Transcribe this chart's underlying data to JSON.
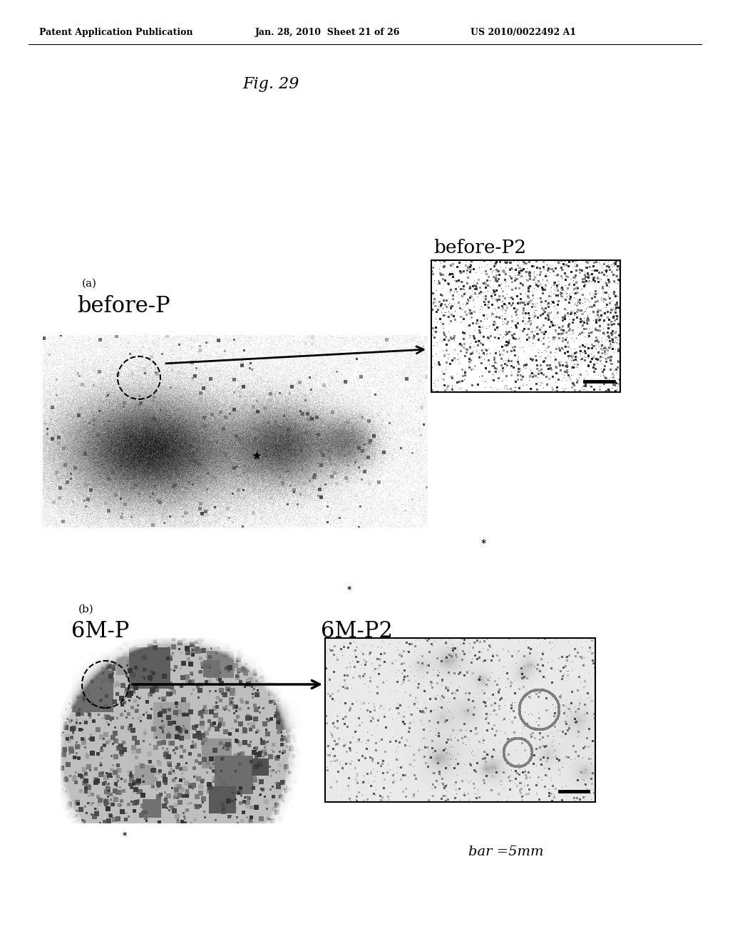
{
  "bg_color": "#ffffff",
  "header_left": "Patent Application Publication",
  "header_middle": "Jan. 28, 2010  Sheet 21 of 26",
  "header_right": "US 2010/0022492 A1",
  "fig_label": "Fig. 29",
  "panel_a_label": "(a)",
  "panel_a_title": "before-P",
  "panel_a_inset_title": "before-P2",
  "panel_b_label": "(b)",
  "panel_b_title": "6M-P",
  "panel_b_inset_title": "6M-P2",
  "scale_bar_text": "bar =5mm",
  "header_fontsize": 9,
  "fig_fontsize": 16,
  "label_fontsize": 22,
  "sublabel_fontsize": 11
}
